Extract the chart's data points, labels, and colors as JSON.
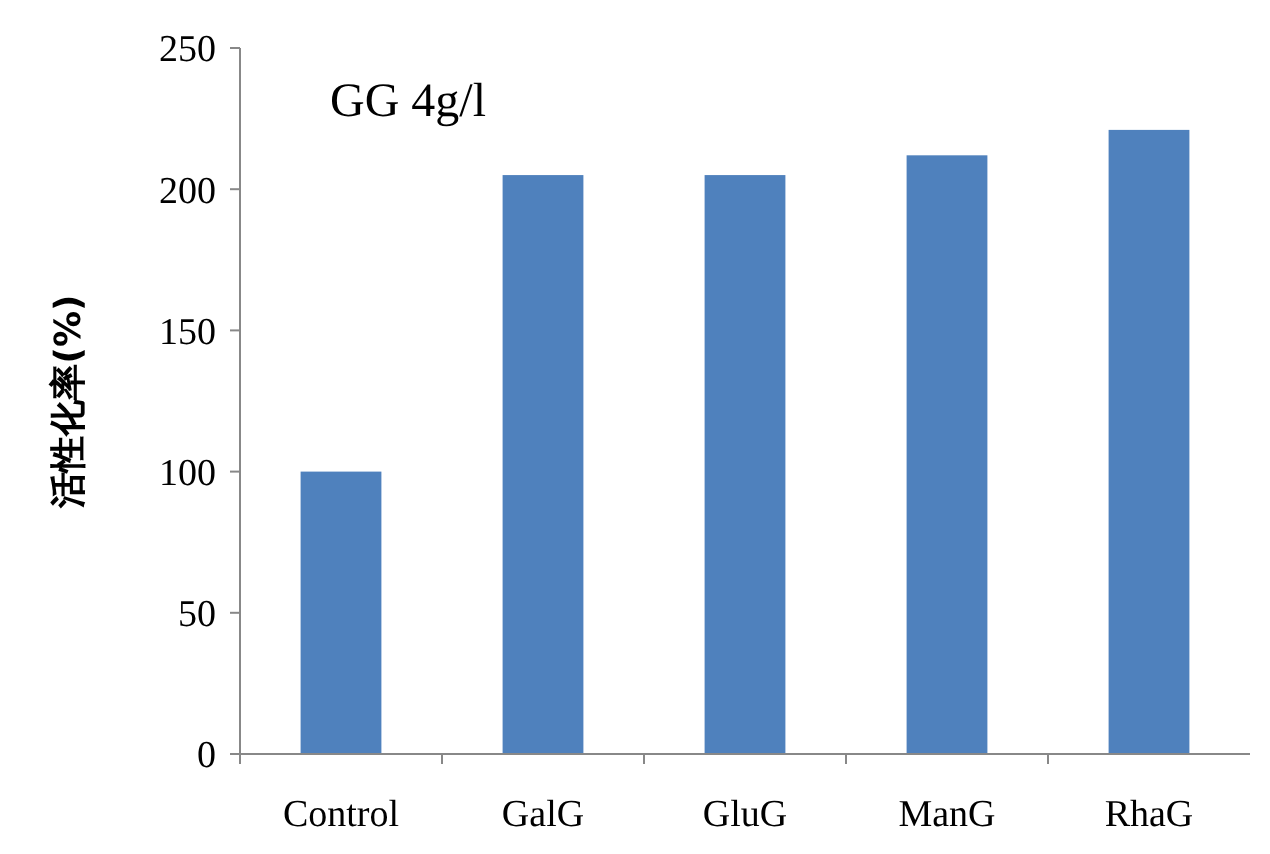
{
  "chart_data": {
    "type": "bar",
    "ylabel": "活性化率(%)",
    "annotations": [
      "GG 4g/l"
    ],
    "categories": [
      "Control",
      "GalG",
      "GluG",
      "ManG",
      "RhaG"
    ],
    "values": [
      100,
      205,
      205,
      212,
      221
    ],
    "color": "#4f81bd",
    "ylim": [
      0,
      250
    ],
    "yticks": [
      0,
      50,
      100,
      150,
      200,
      250
    ],
    "grid": false
  }
}
